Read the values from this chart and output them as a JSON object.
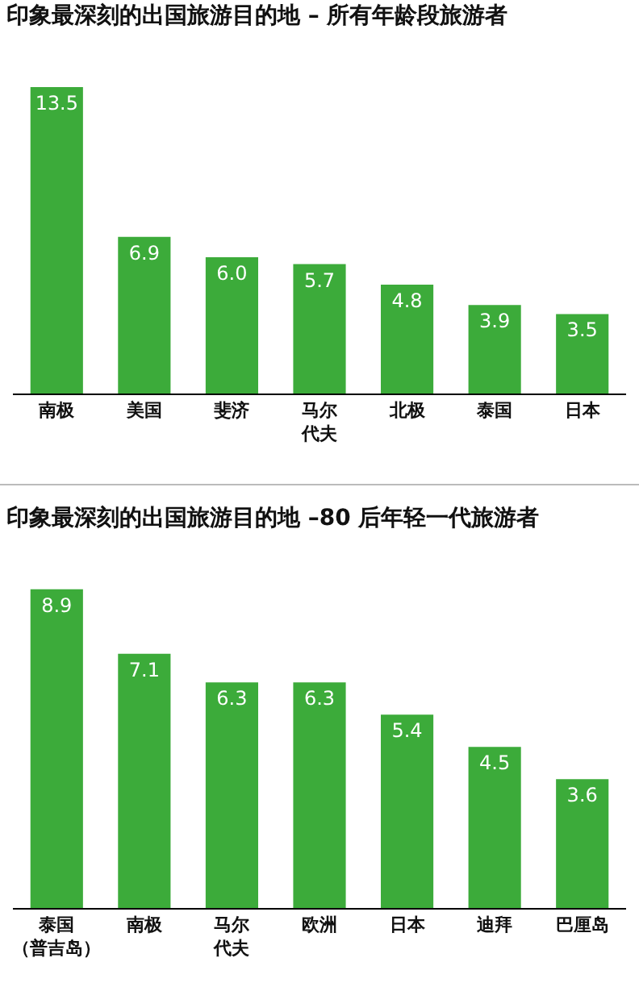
{
  "chart_data": [
    {
      "type": "bar",
      "title": "印象最深刻的出国旅游目的地 – 所有年龄段旅游者",
      "categories": [
        "南极",
        "美国",
        "斐济",
        "马尔代夫",
        "北极",
        "泰国",
        "日本"
      ],
      "values": [
        13.5,
        6.9,
        6.0,
        5.7,
        4.8,
        3.9,
        3.5
      ],
      "value_labels": [
        "13.5",
        "6.9",
        "6.0",
        "5.7",
        "4.8",
        "3.9",
        "3.5"
      ],
      "color": "#3cab3a",
      "grid": false
    },
    {
      "type": "bar",
      "title": "印象最深刻的出国旅游目的地 –80 后年轻一代旅游者",
      "categories": [
        "泰国（普吉岛）",
        "南极",
        "马尔代夫",
        "欧洲",
        "日本",
        "迪拜",
        "巴厘岛"
      ],
      "values": [
        8.9,
        7.1,
        6.3,
        6.3,
        5.4,
        4.5,
        3.6
      ],
      "value_labels": [
        "8.9",
        "7.1",
        "6.3",
        "6.3",
        "5.4",
        "4.5",
        "3.6"
      ],
      "color": "#3cab3a",
      "grid": false
    }
  ]
}
